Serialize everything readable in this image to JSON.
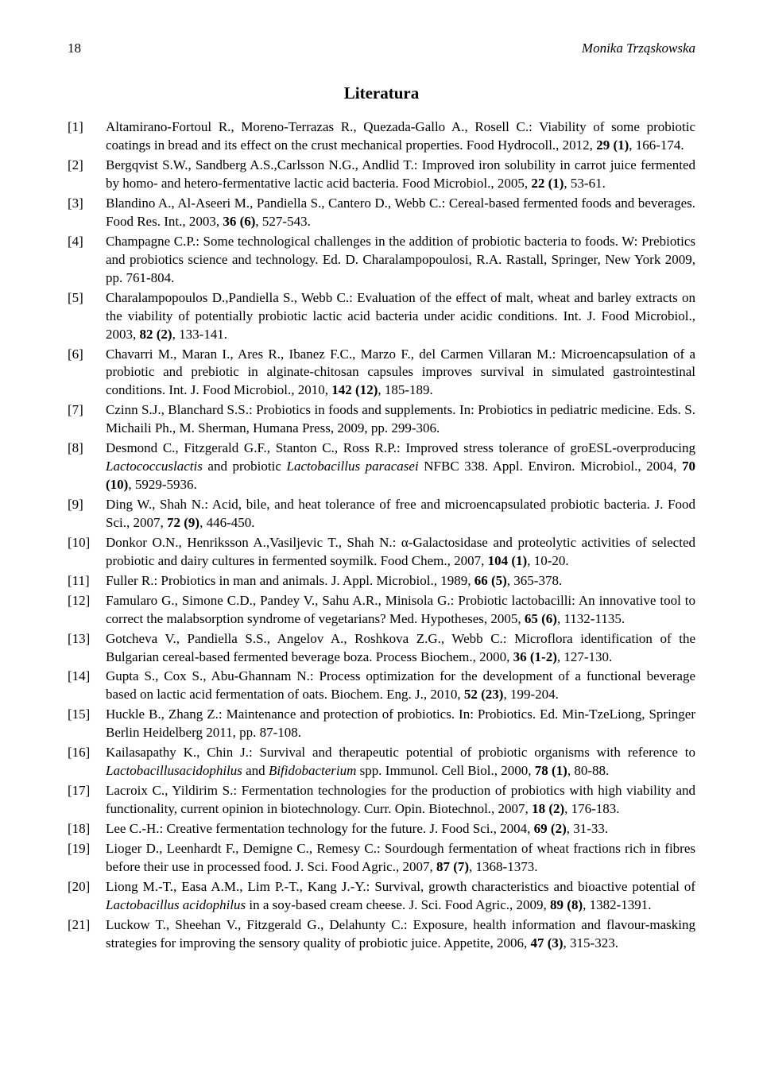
{
  "page_number": "18",
  "author_header": "Monika Trząskowska",
  "section_heading": "Literatura",
  "typography": {
    "body_font_family": "Times New Roman",
    "body_font_size_pt": 12,
    "heading_font_size_pt": 15,
    "line_height": 1.35,
    "text_color": "#000000",
    "background_color": "#ffffff"
  },
  "references": [
    {
      "key": "[1]",
      "segments": [
        {
          "t": "Altamirano-Fortoul R., Moreno-Terrazas R., Quezada-Gallo A., Rosell C.: Viability of some probiotic coatings in bread and its effect on the crust mechanical properties. Food Hydrocoll., 2012, "
        },
        {
          "t": "29 (1)",
          "b": true
        },
        {
          "t": ", 166-174."
        }
      ]
    },
    {
      "key": "[2]",
      "segments": [
        {
          "t": "Bergqvist S.W., Sandberg A.S.,Carlsson N.G., Andlid T.: Improved iron solubility in carrot juice fermented by homo- and hetero-fermentative lactic acid bacteria. Food Microbiol., 2005, "
        },
        {
          "t": "22 (1)",
          "b": true
        },
        {
          "t": ", 53-61."
        }
      ]
    },
    {
      "key": "[3]",
      "segments": [
        {
          "t": "Blandino A., Al-Aseeri M., Pandiella S., Cantero D., Webb C.: Cereal-based fermented foods and beverages. Food Res. Int., 2003, "
        },
        {
          "t": "36 (6)",
          "b": true
        },
        {
          "t": ", 527-543."
        }
      ]
    },
    {
      "key": "[4]",
      "segments": [
        {
          "t": "Champagne C.P.: Some technological challenges in the addition of probiotic bacteria to foods. W: Prebiotics and probiotics science and technology. Ed. D. Charalampopoulosi, R.A. Rastall, Springer, New York 2009, pp. 761-804."
        }
      ]
    },
    {
      "key": "[5]",
      "segments": [
        {
          "t": "Charalampopoulos D.,Pandiella S., Webb C.: Evaluation of the effect of malt, wheat and barley extracts on the viability of potentially probiotic lactic acid bacteria under acidic conditions. Int. J. Food Microbiol., 2003, "
        },
        {
          "t": "82 (2)",
          "b": true
        },
        {
          "t": ", 133-141."
        }
      ]
    },
    {
      "key": "[6]",
      "segments": [
        {
          "t": "Chavarri M., Maran I., Ares R., Ibanez F.C., Marzo F., del Carmen Villaran M.: Microencapsulation of a probiotic and prebiotic in alginate-chitosan capsules improves survival in simulated gastrointestinal conditions. Int. J. Food Microbiol., 2010, "
        },
        {
          "t": "142 (12)",
          "b": true
        },
        {
          "t": ", 185-189."
        }
      ]
    },
    {
      "key": "[7]",
      "segments": [
        {
          "t": "Czinn S.J., Blanchard S.S.: Probiotics in foods and supplements. In: Probiotics in pediatric medicine. Eds. S. Michaili Ph., M. Sherman, Humana Press, 2009, pp. 299-306."
        }
      ]
    },
    {
      "key": "[8]",
      "segments": [
        {
          "t": "Desmond C., Fitzgerald G.F., Stanton C., Ross R.P.: Improved stress tolerance of groESL-overproducing "
        },
        {
          "t": "Lactococcuslactis",
          "i": true
        },
        {
          "t": " and probiotic "
        },
        {
          "t": "Lactobacillus paracasei",
          "i": true
        },
        {
          "t": " NFBC 338. Appl. Environ. Microbiol., 2004, "
        },
        {
          "t": "70 (10)",
          "b": true
        },
        {
          "t": ", 5929-5936."
        }
      ]
    },
    {
      "key": "[9]",
      "segments": [
        {
          "t": "Ding W., Shah N.: Acid, bile, and heat tolerance of free and microencapsulated probiotic bacteria. J. Food Sci., 2007, "
        },
        {
          "t": "72 (9)",
          "b": true
        },
        {
          "t": ", 446-450."
        }
      ]
    },
    {
      "key": "[10]",
      "segments": [
        {
          "t": "Donkor O.N., Henriksson A.,Vasiljevic T., Shah N.: α-Galactosidase and proteolytic activities of selected probiotic and dairy cultures in fermented soymilk. Food Chem., 2007, "
        },
        {
          "t": "104 (1)",
          "b": true
        },
        {
          "t": ", 10-20."
        }
      ]
    },
    {
      "key": "[11]",
      "segments": [
        {
          "t": "Fuller R.: Probiotics in man and animals. J. Appl. Microbiol., 1989, "
        },
        {
          "t": "66 (5)",
          "b": true
        },
        {
          "t": ", 365-378."
        }
      ]
    },
    {
      "key": "[12]",
      "segments": [
        {
          "t": "Famularo G., Simone C.D., Pandey V., Sahu A.R., Minisola G.: Probiotic lactobacilli: An innovative tool to correct the malabsorption syndrome of vegetarians? Med. Hypotheses, 2005, "
        },
        {
          "t": "65 (6)",
          "b": true
        },
        {
          "t": ", 1132-1135."
        }
      ]
    },
    {
      "key": "[13]",
      "segments": [
        {
          "t": "Gotcheva V., Pandiella S.S., Angelov A., Roshkova Z.G., Webb C.: Microflora identification of the Bulgarian cereal-based fermented beverage boza. Process Biochem., 2000, "
        },
        {
          "t": "36 (1-2)",
          "b": true
        },
        {
          "t": ", 127-130."
        }
      ]
    },
    {
      "key": "[14]",
      "segments": [
        {
          "t": "Gupta S., Cox S., Abu-Ghannam N.: Process optimization for the development of a functional beverage based on lactic acid fermentation of oats. Biochem. Eng. J., 2010, "
        },
        {
          "t": "52 (23)",
          "b": true
        },
        {
          "t": ", 199-204."
        }
      ]
    },
    {
      "key": "[15]",
      "segments": [
        {
          "t": "Huckle B., Zhang Z.: Maintenance and protection of probiotics. In: Probiotics. Ed. Min-TzeLiong, Springer Berlin Heidelberg 2011, pp. 87-108."
        }
      ]
    },
    {
      "key": "[16]",
      "segments": [
        {
          "t": "Kailasapathy K., Chin J.: Survival and therapeutic potential of probiotic organisms with reference to "
        },
        {
          "t": "Lactobacillusacidophilus",
          "i": true
        },
        {
          "t": " and "
        },
        {
          "t": "Bifidobacterium",
          "i": true
        },
        {
          "t": " spp. Immunol. Cell Biol., 2000, "
        },
        {
          "t": "78 (1)",
          "b": true
        },
        {
          "t": ", 80-88."
        }
      ]
    },
    {
      "key": "[17]",
      "segments": [
        {
          "t": "Lacroix C., Yildirim S.: Fermentation technologies for the production of probiotics with high viability and functionality, current opinion in biotechnology. Curr. Opin. Biotechnol., 2007, "
        },
        {
          "t": "18 (2)",
          "b": true
        },
        {
          "t": ", 176-183."
        }
      ]
    },
    {
      "key": "[18]",
      "segments": [
        {
          "t": "Lee C.-H.: Creative fermentation technology for the future. J. Food Sci., 2004, "
        },
        {
          "t": "69 (2)",
          "b": true
        },
        {
          "t": ", 31-33."
        }
      ]
    },
    {
      "key": "[19]",
      "segments": [
        {
          "t": "Lioger D., Leenhardt F., Demigne C., Remesy C.: Sourdough fermentation of wheat fractions rich in fibres before their use in processed food. J. Sci. Food Agric., 2007, "
        },
        {
          "t": "87 (7)",
          "b": true
        },
        {
          "t": ", 1368-1373."
        }
      ]
    },
    {
      "key": "[20]",
      "segments": [
        {
          "t": "Liong M.-T., Easa A.M., Lim P.-T., Kang J.-Y.: Survival, growth characteristics and bioactive potential of "
        },
        {
          "t": "Lactobacillus acidophilus",
          "i": true
        },
        {
          "t": " in a soy-based cream cheese. J. Sci. Food Agric., 2009, "
        },
        {
          "t": "89 (8)",
          "b": true
        },
        {
          "t": ", 1382-1391."
        }
      ]
    },
    {
      "key": "[21]",
      "segments": [
        {
          "t": "Luckow T., Sheehan V., Fitzgerald G., Delahunty C.: Exposure, health information and flavour-masking strategies for improving the sensory quality of probiotic juice. Appetite, 2006, "
        },
        {
          "t": "47 (3)",
          "b": true
        },
        {
          "t": ", 315-323."
        }
      ]
    }
  ]
}
